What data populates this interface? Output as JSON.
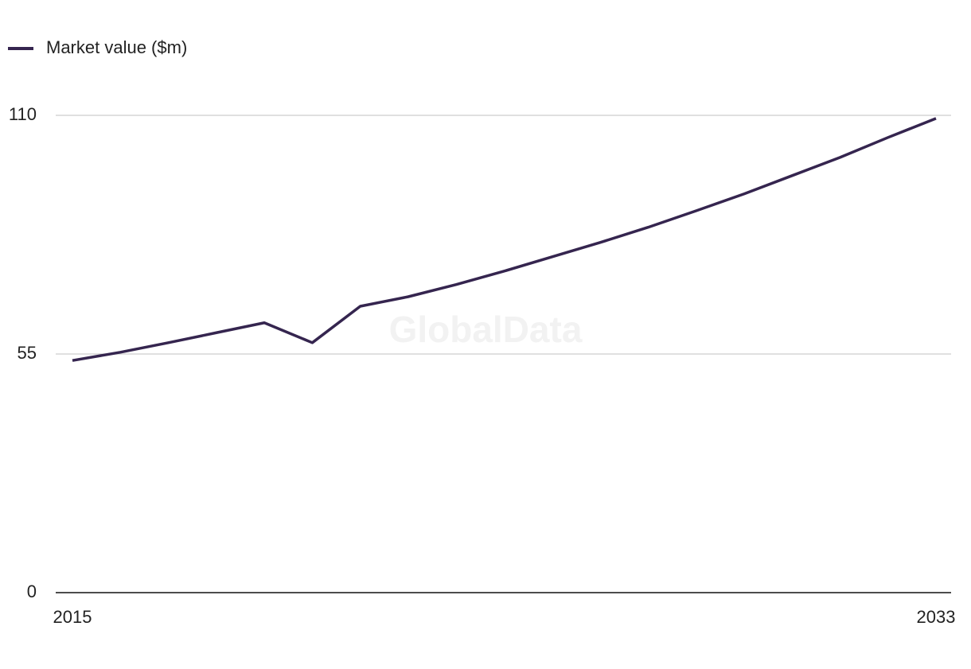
{
  "chart_data": {
    "type": "line",
    "watermark": "GlobalData",
    "x": [
      2015,
      2016,
      2017,
      2018,
      2019,
      2020,
      2021,
      2022,
      2023,
      2024,
      2025,
      2026,
      2027,
      2028,
      2029,
      2030,
      2031,
      2032,
      2033
    ],
    "series": [
      {
        "name": "Market value ($m)",
        "color": "#35254f",
        "values": [
          53.5,
          55.4,
          57.6,
          59.9,
          62.2,
          57.6,
          66.0,
          68.2,
          71.0,
          74.1,
          77.4,
          80.7,
          84.2,
          88.0,
          91.9,
          96.1,
          100.3,
          104.9,
          109.3
        ]
      }
    ],
    "xlim": [
      2015,
      2033
    ],
    "xticks": [
      2015,
      2033
    ],
    "ylim": [
      0,
      110
    ],
    "yticks": [
      0,
      55,
      110
    ],
    "grid": true
  }
}
